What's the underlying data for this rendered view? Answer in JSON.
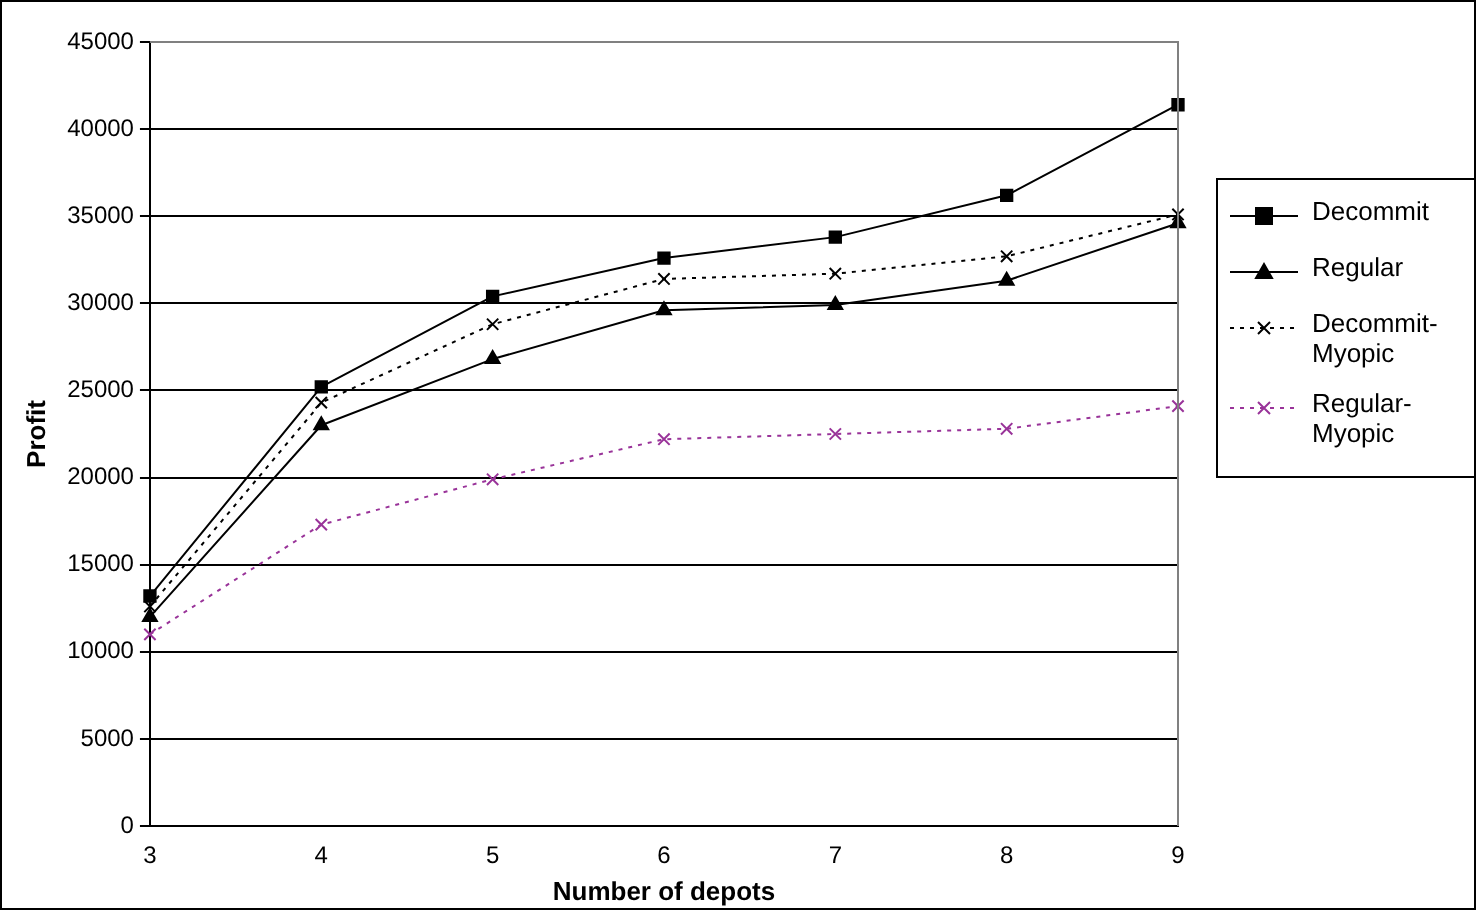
{
  "chart_data": {
    "type": "line",
    "xlabel": "Number of depots",
    "ylabel": "Profit",
    "categories": [
      "3",
      "4",
      "5",
      "6",
      "7",
      "8",
      "9"
    ],
    "ylim": [
      0,
      45000
    ],
    "yticks": [
      0,
      5000,
      10000,
      15000,
      20000,
      25000,
      30000,
      35000,
      40000,
      45000
    ],
    "grid": "y",
    "legend": "right",
    "series": [
      {
        "name": "Decommit",
        "color": "#000000",
        "marker": "square",
        "line_style": "solid",
        "values": [
          13200,
          25200,
          30400,
          32600,
          33800,
          36200,
          41400
        ]
      },
      {
        "name": "Regular",
        "color": "#000000",
        "marker": "triangle",
        "line_style": "solid",
        "values": [
          12000,
          23000,
          26800,
          29600,
          29900,
          31300,
          34600
        ]
      },
      {
        "name": "Decommit-Myopic",
        "color": "#000000",
        "marker": "cross",
        "line_style": "dotted",
        "values": [
          12600,
          24300,
          28800,
          31400,
          31700,
          32700,
          35100
        ]
      },
      {
        "name": "Regular-Myopic",
        "color": "#993399",
        "marker": "cross",
        "line_style": "dotted",
        "values": [
          11000,
          17300,
          19900,
          22200,
          22500,
          22800,
          24100
        ]
      }
    ]
  }
}
